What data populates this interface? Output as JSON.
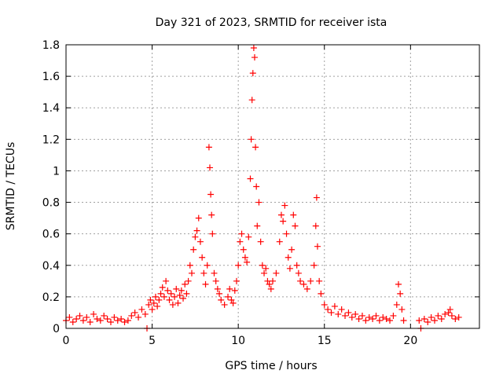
{
  "chart_data": {
    "type": "scatter",
    "title": "Day 321 of 2023, SRMTID for receiver ista",
    "xlabel": "GPS time / hours",
    "ylabel": "SRMTID / TECUs",
    "xlim": [
      0,
      24
    ],
    "ylim": [
      0,
      1.8
    ],
    "xticks": [
      0,
      5,
      10,
      15,
      20
    ],
    "xtick_labels": [
      "0",
      "5",
      "10",
      "15",
      "20"
    ],
    "yticks": [
      0,
      0.2,
      0.4,
      0.6,
      0.8,
      1.0,
      1.2,
      1.4,
      1.6,
      1.8
    ],
    "ytick_labels": [
      "0",
      "0.2",
      "0.4",
      "0.6",
      "0.8",
      "1",
      "1.2",
      "1.4",
      "1.6",
      "1.8"
    ],
    "grid": true,
    "marker": "+",
    "color": "#ff0000",
    "series": [
      {
        "name": "SRMTID",
        "points": [
          [
            0.0,
            0.05
          ],
          [
            0.2,
            0.07
          ],
          [
            0.4,
            0.04
          ],
          [
            0.6,
            0.06
          ],
          [
            0.8,
            0.08
          ],
          [
            1.0,
            0.05
          ],
          [
            1.2,
            0.07
          ],
          [
            1.4,
            0.04
          ],
          [
            1.6,
            0.09
          ],
          [
            1.8,
            0.06
          ],
          [
            2.0,
            0.05
          ],
          [
            2.2,
            0.08
          ],
          [
            2.4,
            0.06
          ],
          [
            2.6,
            0.04
          ],
          [
            2.8,
            0.07
          ],
          [
            3.0,
            0.05
          ],
          [
            3.2,
            0.06
          ],
          [
            3.4,
            0.04
          ],
          [
            3.6,
            0.05
          ],
          [
            3.8,
            0.08
          ],
          [
            4.0,
            0.1
          ],
          [
            4.2,
            0.07
          ],
          [
            4.4,
            0.12
          ],
          [
            4.6,
            0.09
          ],
          [
            4.7,
            0.0
          ],
          [
            4.8,
            0.15
          ],
          [
            4.9,
            0.18
          ],
          [
            5.0,
            0.12
          ],
          [
            5.1,
            0.16
          ],
          [
            5.2,
            0.2
          ],
          [
            5.3,
            0.14
          ],
          [
            5.4,
            0.18
          ],
          [
            5.5,
            0.22
          ],
          [
            5.6,
            0.26
          ],
          [
            5.7,
            0.2
          ],
          [
            5.8,
            0.3
          ],
          [
            5.9,
            0.24
          ],
          [
            6.0,
            0.18
          ],
          [
            6.1,
            0.22
          ],
          [
            6.2,
            0.15
          ],
          [
            6.3,
            0.2
          ],
          [
            6.4,
            0.25
          ],
          [
            6.5,
            0.16
          ],
          [
            6.6,
            0.21
          ],
          [
            6.7,
            0.24
          ],
          [
            6.8,
            0.19
          ],
          [
            6.9,
            0.28
          ],
          [
            7.0,
            0.22
          ],
          [
            7.1,
            0.3
          ],
          [
            7.2,
            0.4
          ],
          [
            7.3,
            0.35
          ],
          [
            7.4,
            0.5
          ],
          [
            7.5,
            0.58
          ],
          [
            7.6,
            0.62
          ],
          [
            7.7,
            0.7
          ],
          [
            7.8,
            0.55
          ],
          [
            7.9,
            0.45
          ],
          [
            8.0,
            0.35
          ],
          [
            8.1,
            0.28
          ],
          [
            8.2,
            0.4
          ],
          [
            8.3,
            1.15
          ],
          [
            8.35,
            1.02
          ],
          [
            8.4,
            0.85
          ],
          [
            8.45,
            0.72
          ],
          [
            8.5,
            0.6
          ],
          [
            8.6,
            0.35
          ],
          [
            8.7,
            0.3
          ],
          [
            8.8,
            0.25
          ],
          [
            8.9,
            0.22
          ],
          [
            9.0,
            0.18
          ],
          [
            9.2,
            0.15
          ],
          [
            9.4,
            0.2
          ],
          [
            9.5,
            0.25
          ],
          [
            9.6,
            0.18
          ],
          [
            9.7,
            0.16
          ],
          [
            9.8,
            0.24
          ],
          [
            9.9,
            0.3
          ],
          [
            10.0,
            0.4
          ],
          [
            10.1,
            0.55
          ],
          [
            10.2,
            0.6
          ],
          [
            10.3,
            0.5
          ],
          [
            10.4,
            0.45
          ],
          [
            10.5,
            0.42
          ],
          [
            10.6,
            0.58
          ],
          [
            10.7,
            0.95
          ],
          [
            10.75,
            1.2
          ],
          [
            10.8,
            1.45
          ],
          [
            10.85,
            1.62
          ],
          [
            10.9,
            1.78
          ],
          [
            10.95,
            1.72
          ],
          [
            11.0,
            1.15
          ],
          [
            11.05,
            0.9
          ],
          [
            11.1,
            0.65
          ],
          [
            11.2,
            0.8
          ],
          [
            11.3,
            0.55
          ],
          [
            11.4,
            0.4
          ],
          [
            11.5,
            0.35
          ],
          [
            11.6,
            0.38
          ],
          [
            11.7,
            0.3
          ],
          [
            11.8,
            0.28
          ],
          [
            11.9,
            0.25
          ],
          [
            12.0,
            0.3
          ],
          [
            12.2,
            0.35
          ],
          [
            12.4,
            0.55
          ],
          [
            12.5,
            0.72
          ],
          [
            12.6,
            0.68
          ],
          [
            12.7,
            0.78
          ],
          [
            12.8,
            0.6
          ],
          [
            12.9,
            0.45
          ],
          [
            13.0,
            0.38
          ],
          [
            13.1,
            0.5
          ],
          [
            13.2,
            0.72
          ],
          [
            13.3,
            0.65
          ],
          [
            13.4,
            0.4
          ],
          [
            13.5,
            0.35
          ],
          [
            13.6,
            0.3
          ],
          [
            13.8,
            0.28
          ],
          [
            14.0,
            0.25
          ],
          [
            14.2,
            0.3
          ],
          [
            14.4,
            0.4
          ],
          [
            14.5,
            0.65
          ],
          [
            14.55,
            0.83
          ],
          [
            14.6,
            0.52
          ],
          [
            14.7,
            0.3
          ],
          [
            14.8,
            0.22
          ],
          [
            15.0,
            0.15
          ],
          [
            15.2,
            0.12
          ],
          [
            15.4,
            0.1
          ],
          [
            15.6,
            0.14
          ],
          [
            15.8,
            0.09
          ],
          [
            16.0,
            0.12
          ],
          [
            16.2,
            0.08
          ],
          [
            16.4,
            0.1
          ],
          [
            16.6,
            0.07
          ],
          [
            16.8,
            0.09
          ],
          [
            17.0,
            0.06
          ],
          [
            17.2,
            0.08
          ],
          [
            17.4,
            0.05
          ],
          [
            17.6,
            0.07
          ],
          [
            17.8,
            0.06
          ],
          [
            18.0,
            0.08
          ],
          [
            18.2,
            0.05
          ],
          [
            18.4,
            0.07
          ],
          [
            18.6,
            0.06
          ],
          [
            18.8,
            0.05
          ],
          [
            19.0,
            0.08
          ],
          [
            19.2,
            0.15
          ],
          [
            19.3,
            0.28
          ],
          [
            19.4,
            0.22
          ],
          [
            19.5,
            0.12
          ],
          [
            19.6,
            0.05
          ],
          [
            20.5,
            0.05
          ],
          [
            20.6,
            0.0
          ],
          [
            20.8,
            0.06
          ],
          [
            21.0,
            0.04
          ],
          [
            21.2,
            0.07
          ],
          [
            21.4,
            0.05
          ],
          [
            21.6,
            0.08
          ],
          [
            21.8,
            0.06
          ],
          [
            22.0,
            0.09
          ],
          [
            22.2,
            0.1
          ],
          [
            22.3,
            0.12
          ],
          [
            22.4,
            0.08
          ],
          [
            22.6,
            0.06
          ],
          [
            22.8,
            0.07
          ]
        ]
      }
    ]
  }
}
